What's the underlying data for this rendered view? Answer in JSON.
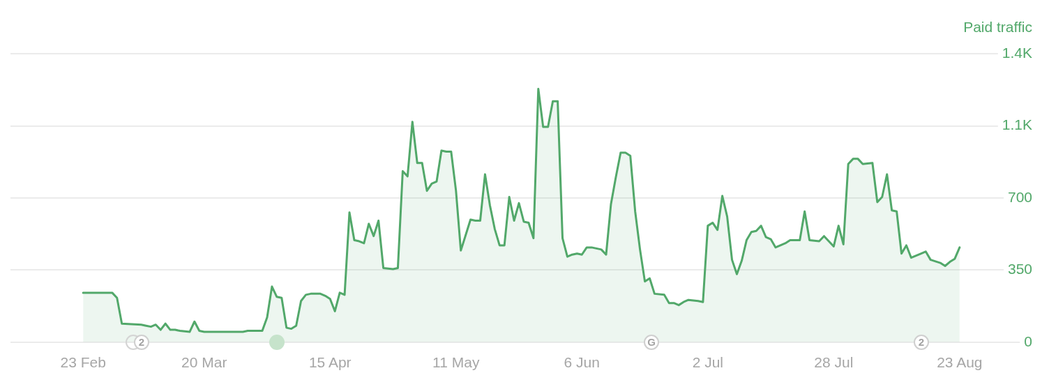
{
  "chart_data": {
    "type": "area",
    "title": "Paid traffic",
    "x": [
      "--02-23",
      "--03-01",
      "--03-02",
      "--03-03",
      "--03-07",
      "--03-08",
      "--03-09",
      "--03-10",
      "--03-11",
      "--03-12",
      "--03-13",
      "--03-14",
      "--03-15",
      "--03-17",
      "--03-18",
      "--03-19",
      "--03-20",
      "--03-28",
      "--03-29",
      "--04-01",
      "--04-02",
      "--04-03",
      "--04-04",
      "--04-05",
      "--04-06",
      "--04-07",
      "--04-08",
      "--04-09",
      "--04-10",
      "--04-11",
      "--04-13",
      "--04-14",
      "--04-15",
      "--04-16",
      "--04-17",
      "--04-18",
      "--04-19",
      "--04-20",
      "--04-21",
      "--04-22",
      "--04-23",
      "--04-24",
      "--04-25",
      "--04-26",
      "--04-28",
      "--04-29",
      "--04-30",
      "--05-01",
      "--05-02",
      "--05-03",
      "--05-04",
      "--05-05",
      "--05-06",
      "--05-07",
      "--05-08",
      "--05-09",
      "--05-10",
      "--05-11",
      "--05-12",
      "--05-13",
      "--05-14",
      "--05-15",
      "--05-16",
      "--05-17",
      "--05-18",
      "--05-19",
      "--05-20",
      "--05-21",
      "--05-22",
      "--05-23",
      "--05-24",
      "--05-25",
      "--05-26",
      "--05-27",
      "--05-28",
      "--05-29",
      "--05-30",
      "--05-31",
      "--06-01",
      "--06-02",
      "--06-03",
      "--06-04",
      "--06-05",
      "--06-06",
      "--06-07",
      "--06-08",
      "--06-10",
      "--06-11",
      "--06-12",
      "--06-13",
      "--06-14",
      "--06-15",
      "--06-16",
      "--06-17",
      "--06-18",
      "--06-19",
      "--06-20",
      "--06-21",
      "--06-23",
      "--06-24",
      "--06-25",
      "--06-26",
      "--06-27",
      "--06-28",
      "--06-30",
      "--07-01",
      "--07-02",
      "--07-03",
      "--07-04",
      "--07-05",
      "--07-06",
      "--07-07",
      "--07-08",
      "--07-09",
      "--07-10",
      "--07-11",
      "--07-12",
      "--07-13",
      "--07-14",
      "--07-15",
      "--07-16",
      "--07-18",
      "--07-19",
      "--07-21",
      "--07-22",
      "--07-23",
      "--07-25",
      "--07-26",
      "--07-28",
      "--07-29",
      "--07-30",
      "--07-31",
      "--08-01",
      "--08-02",
      "--08-03",
      "--08-05",
      "--08-06",
      "--08-07",
      "--08-08",
      "--08-09",
      "--08-10",
      "--08-11",
      "--08-12",
      "--08-13",
      "--08-15",
      "--08-16",
      "--08-17",
      "--08-19",
      "--08-20",
      "--08-21",
      "--08-22",
      "--08-23"
    ],
    "series": [
      {
        "color": "#52a86a",
        "values": [
          240,
          240,
          215,
          90,
          85,
          80,
          75,
          85,
          60,
          90,
          60,
          60,
          55,
          50,
          100,
          55,
          50,
          50,
          55,
          55,
          120,
          270,
          220,
          215,
          70,
          65,
          80,
          200,
          230,
          235,
          235,
          225,
          210,
          150,
          240,
          230,
          630,
          495,
          490,
          480,
          575,
          515,
          590,
          360,
          355,
          360,
          830,
          805,
          1070,
          870,
          870,
          735,
          770,
          780,
          930,
          925,
          925,
          735,
          445,
          520,
          595,
          590,
          590,
          815,
          665,
          550,
          470,
          470,
          705,
          590,
          675,
          585,
          580,
          505,
          1230,
          1045,
          1045,
          1170,
          1170,
          505,
          415,
          425,
          430,
          425,
          460,
          460,
          450,
          425,
          670,
          800,
          920,
          920,
          905,
          635,
          450,
          295,
          310,
          235,
          230,
          190,
          190,
          180,
          195,
          205,
          200,
          195,
          565,
          580,
          545,
          710,
          610,
          400,
          330,
          395,
          495,
          535,
          540,
          565,
          510,
          500,
          460,
          480,
          495,
          495,
          635,
          495,
          490,
          515,
          465,
          565,
          475,
          865,
          890,
          890,
          865,
          870,
          680,
          705,
          815,
          640,
          635,
          430,
          470,
          410,
          430,
          440,
          400,
          385,
          370,
          390,
          405,
          460
        ]
      }
    ],
    "xlim": [
      "--02-08",
      "--09-07"
    ],
    "xticks": [
      {
        "value": "--02-23",
        "label": "23 Feb"
      },
      {
        "value": "--03-20",
        "label": "20 Mar"
      },
      {
        "value": "--04-15",
        "label": "15 Apr"
      },
      {
        "value": "--05-11",
        "label": "11 May"
      },
      {
        "value": "--06-06",
        "label": "6 Jun"
      },
      {
        "value": "--07-02",
        "label": "2 Jul"
      },
      {
        "value": "--07-28",
        "label": "28 Jul"
      },
      {
        "value": "--08-23",
        "label": "23 Aug"
      }
    ],
    "ylim": [
      0,
      1400
    ],
    "yticks": [
      0,
      350,
      700,
      {
        "value": 1050,
        "label": "1.1K"
      },
      {
        "value": 1400,
        "label": "1.4K"
      }
    ],
    "annotations": [
      "2",
      "G",
      "2"
    ],
    "grid": "y",
    "marker": "none"
  }
}
